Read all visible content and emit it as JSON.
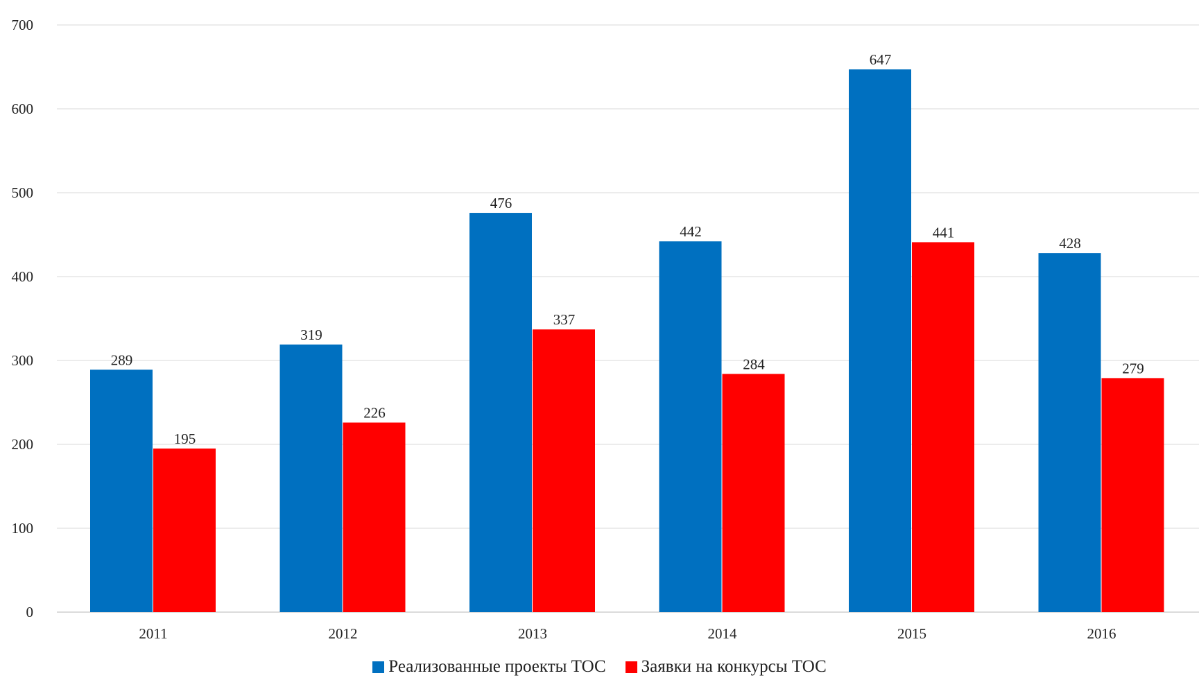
{
  "chart_data": {
    "type": "bar",
    "categories": [
      "2011",
      "2012",
      "2013",
      "2014",
      "2015",
      "2016"
    ],
    "series": [
      {
        "name": "Реализованные проекты ТОС",
        "values": [
          289,
          319,
          476,
          442,
          647,
          428
        ],
        "color": "#0070c0"
      },
      {
        "name": "Заявки на конкурсы ТОС",
        "values": [
          195,
          226,
          337,
          284,
          441,
          279
        ],
        "color": "#ff0000"
      }
    ],
    "ylim": [
      0,
      700
    ],
    "yticks": [
      "0",
      "100",
      "200",
      "300",
      "400",
      "500",
      "600",
      "700"
    ],
    "grid": true,
    "data_labels": true,
    "legend_position": "bottom-center"
  }
}
